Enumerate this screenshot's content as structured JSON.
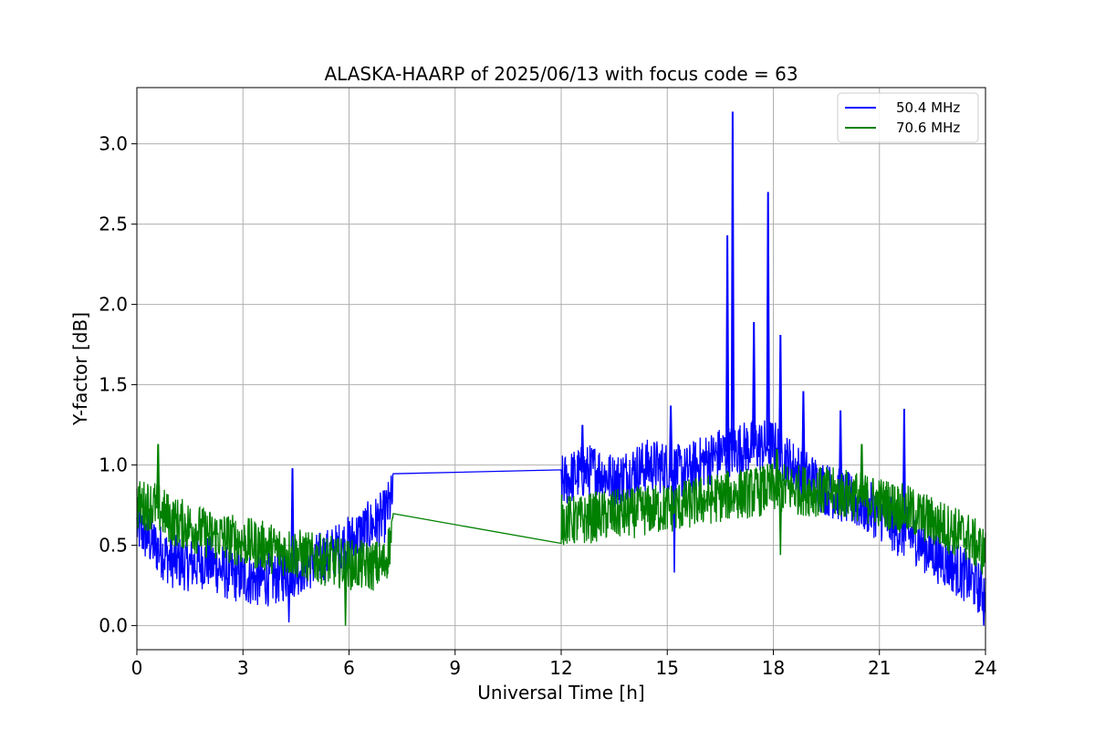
{
  "chart_data": {
    "type": "line",
    "title": "ALASKA-HAARP of 2025/06/13 with focus code = 63",
    "xlabel": "Universal Time [h]",
    "ylabel": "Y-factor [dB]",
    "xlim": [
      0,
      24
    ],
    "ylim": [
      -0.15,
      3.35
    ],
    "xticks": [
      0,
      3,
      6,
      9,
      12,
      15,
      18,
      21,
      24
    ],
    "yticks": [
      0.0,
      0.5,
      1.0,
      1.5,
      2.0,
      2.5,
      3.0
    ],
    "xtick_labels": [
      "0",
      "3",
      "6",
      "9",
      "12",
      "15",
      "18",
      "21",
      "24"
    ],
    "ytick_labels": [
      "0.0",
      "0.5",
      "1.0",
      "1.5",
      "2.0",
      "2.5",
      "3.0"
    ],
    "grid": true,
    "legend": "top-right",
    "series": [
      {
        "name": "50.4 MHz",
        "color": "#0000ff",
        "x": [
          0,
          0.5,
          1,
          1.5,
          2,
          2.5,
          3,
          3.5,
          4,
          4.5,
          5,
          5.5,
          6,
          6.5,
          7,
          7.25,
          12,
          12.5,
          13,
          13.5,
          14,
          14.5,
          15,
          15.5,
          16,
          16.5,
          17,
          17.5,
          18,
          18.5,
          19,
          19.5,
          20,
          20.5,
          21,
          21.5,
          22,
          22.5,
          23,
          23.5,
          24
        ],
        "values": [
          0.62,
          0.5,
          0.4,
          0.38,
          0.4,
          0.33,
          0.3,
          0.28,
          0.3,
          0.35,
          0.4,
          0.45,
          0.52,
          0.6,
          0.68,
          0.81,
          0.89,
          0.95,
          0.97,
          0.9,
          0.96,
          1.0,
          0.98,
          0.95,
          1.02,
          1.07,
          1.1,
          1.12,
          1.12,
          1.0,
          0.92,
          0.85,
          0.8,
          0.75,
          0.7,
          0.6,
          0.55,
          0.45,
          0.38,
          0.3,
          0.2
        ],
        "spikes": [
          {
            "x": 4.4,
            "y": 0.98
          },
          {
            "x": 12.6,
            "y": 1.25
          },
          {
            "x": 15.1,
            "y": 1.37
          },
          {
            "x": 16.7,
            "y": 2.43
          },
          {
            "x": 16.85,
            "y": 3.2
          },
          {
            "x": 17.45,
            "y": 1.89
          },
          {
            "x": 17.85,
            "y": 2.7
          },
          {
            "x": 18.2,
            "y": 1.81
          },
          {
            "x": 18.85,
            "y": 1.46
          },
          {
            "x": 19.9,
            "y": 1.34
          },
          {
            "x": 21.7,
            "y": 1.35
          }
        ],
        "dips": [
          {
            "x": 4.3,
            "y": 0.02
          },
          {
            "x": 15.2,
            "y": 0.33
          },
          {
            "x": 23.95,
            "y": 0.0
          }
        ]
      },
      {
        "name": "70.6 MHz",
        "color": "#008000",
        "x": [
          0,
          0.5,
          1,
          1.5,
          2,
          2.5,
          3,
          3.5,
          4,
          4.5,
          5,
          5.5,
          6,
          6.5,
          7,
          7.25,
          12,
          12.5,
          13,
          13.5,
          14,
          14.5,
          15,
          15.5,
          16,
          16.5,
          17,
          17.5,
          18,
          18.5,
          19,
          19.5,
          20,
          20.5,
          21,
          21.5,
          22,
          22.5,
          23,
          23.5,
          24
        ],
        "values": [
          0.75,
          0.75,
          0.65,
          0.62,
          0.57,
          0.55,
          0.52,
          0.5,
          0.47,
          0.45,
          0.42,
          0.4,
          0.38,
          0.37,
          0.38,
          0.6,
          0.66,
          0.65,
          0.68,
          0.69,
          0.7,
          0.72,
          0.73,
          0.75,
          0.78,
          0.8,
          0.82,
          0.83,
          0.86,
          0.85,
          0.84,
          0.83,
          0.82,
          0.8,
          0.77,
          0.74,
          0.7,
          0.65,
          0.6,
          0.55,
          0.45
        ],
        "spikes": [
          {
            "x": 0.6,
            "y": 1.13
          },
          {
            "x": 18.1,
            "y": 1.1
          },
          {
            "x": 20.5,
            "y": 1.13
          }
        ],
        "dips": [
          {
            "x": 5.9,
            "y": 0.0
          },
          {
            "x": 18.2,
            "y": 0.44
          }
        ]
      }
    ]
  }
}
